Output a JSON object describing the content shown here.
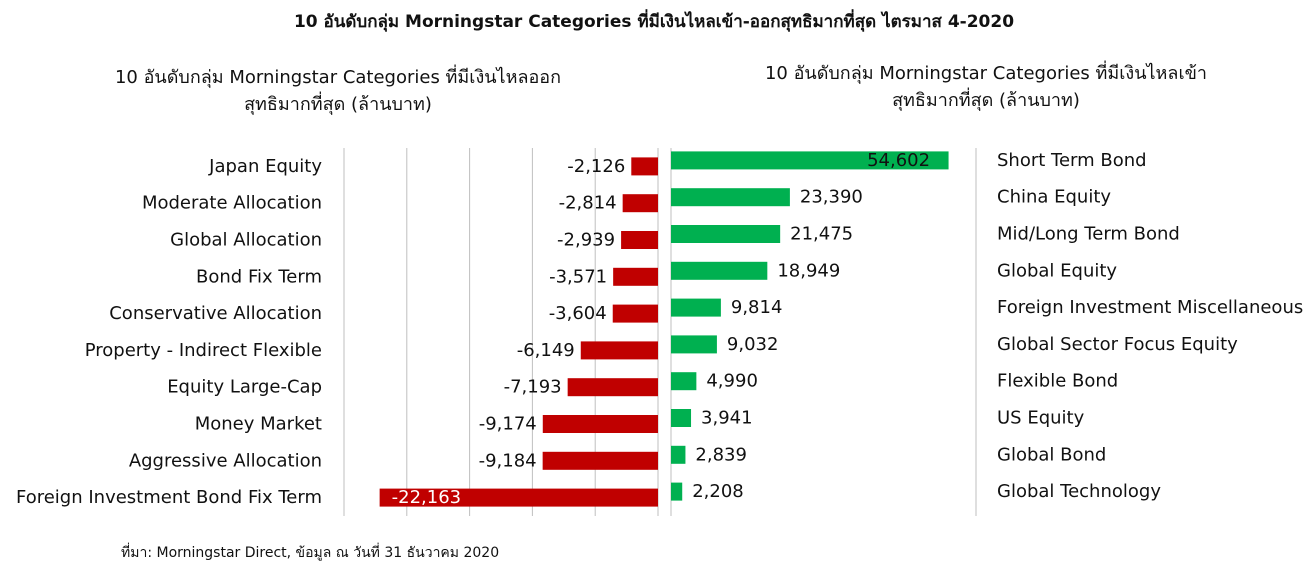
{
  "title": "10 อันดับกลุ่ม Morningstar Categories ที่มีเงินไหลเข้า-ออกสุทธิมากที่สุด ไตรมาส 4-2020",
  "source": "ที่มา: Morningstar Direct, ข้อมูล ณ วันที่ 31 ธันวาคม 2020",
  "colors": {
    "outflow": "#c00000",
    "inflow": "#00b050",
    "grid": "#bfbfbf"
  },
  "chart_data": [
    {
      "type": "bar",
      "orientation": "horizontal",
      "title_lines": [
        "10 อันดับกลุ่ม Morningstar Categories ที่มีเงินไหลออก",
        "สุทธิมากที่สุด (ล้านบาท)"
      ],
      "categories": [
        "Japan Equity",
        "Moderate Allocation",
        "Global Allocation",
        "Bond Fix Term",
        "Conservative Allocation",
        "Property - Indirect Flexible",
        "Equity Large-Cap",
        "Money Market",
        "Aggressive Allocation",
        "Foreign Investment Bond Fix Term"
      ],
      "values": [
        -2126,
        -2814,
        -2939,
        -3571,
        -3604,
        -6149,
        -7193,
        -9174,
        -9184,
        -22163
      ],
      "labels": [
        "-2,126",
        "-2,814",
        "-2,939",
        "-3,571",
        "-3,604",
        "-6,149",
        "-7,193",
        "-9,174",
        "-9,184",
        "-22,163"
      ],
      "xlim": [
        -25000,
        0
      ],
      "grid": true
    },
    {
      "type": "bar",
      "orientation": "horizontal",
      "title_lines": [
        "10 อันดับกลุ่ม Morningstar Categories ที่มีเงินไหลเข้า",
        "สุทธิมากที่สุด (ล้านบาท)"
      ],
      "categories": [
        "Short Term Bond",
        "China Equity",
        "Mid/Long Term Bond",
        "Global Equity",
        "Foreign Investment Miscellaneous",
        "Global Sector Focus Equity",
        "Flexible Bond",
        "US Equity",
        "Global Bond",
        "Global Technology"
      ],
      "values": [
        54602,
        23390,
        21475,
        18949,
        9814,
        9032,
        4990,
        3941,
        2839,
        2208
      ],
      "labels": [
        "54,602",
        "23,390",
        "21,475",
        "18,949",
        "9,814",
        "9,032",
        "4,990",
        "3,941",
        "2,839",
        "2,208"
      ],
      "xlim": [
        0,
        60000
      ],
      "grid": true
    }
  ]
}
